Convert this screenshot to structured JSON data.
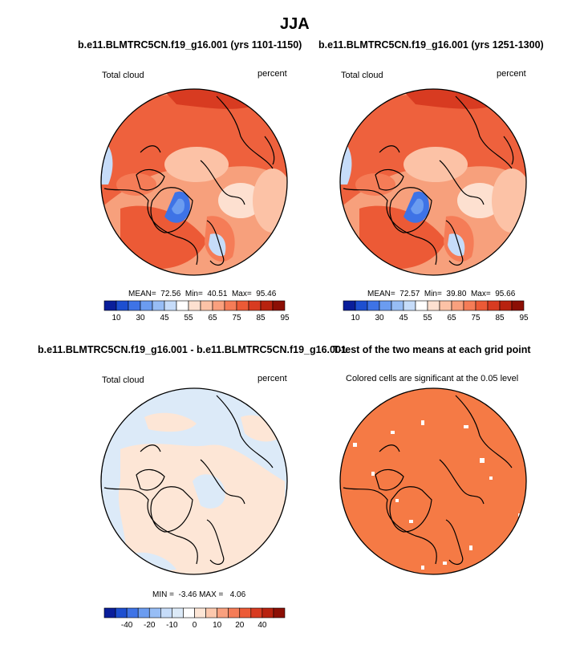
{
  "figure_title": "JJA",
  "panels": [
    {
      "title": "b.e11.BLMTRC5CN.f19_g16.001 (yrs 1101-1150)",
      "left_label": "Total cloud",
      "right_label": "percent",
      "stats": "MEAN=  72.56  Min=  40.51  Max=  95.46"
    },
    {
      "title": "b.e11.BLMTRC5CN.f19_g16.001 (yrs 1251-1300)",
      "left_label": "Total cloud",
      "right_label": "percent",
      "stats": "MEAN=  72.57  Min=  39.80  Max=  95.66"
    },
    {
      "title": "b.e11.BLMTRC5CN.f19_g16.001 - b.e11.BLMTRC5CN.f19_g16.001",
      "left_label": "Total cloud",
      "right_label": "percent",
      "stats": "MIN =  -3.46 MAX =   4.06"
    },
    {
      "title": "T-test of the two means at each grid point",
      "left_label": "Colored cells are significant at the 0.05 level",
      "right_label": "",
      "stats": ""
    }
  ],
  "colorbars": {
    "top": {
      "colors": [
        "#0a1e9a",
        "#1d4fd0",
        "#3e73e6",
        "#6b9cf0",
        "#97bdf5",
        "#c6dcf9",
        "#ffffff",
        "#fde0d0",
        "#fcc2a6",
        "#f9a07e",
        "#f57c57",
        "#ec5a36",
        "#d83b21",
        "#b8220f",
        "#8c0f05"
      ],
      "labels": [
        "10",
        "30",
        "45",
        "55",
        "65",
        "75",
        "85",
        "95"
      ],
      "label_after_box": [
        1,
        3,
        5,
        7,
        9,
        11,
        13,
        15
      ]
    },
    "bottom": {
      "colors": [
        "#0a1e9a",
        "#1d4fd0",
        "#3e73e6",
        "#6b9cf0",
        "#97bdf5",
        "#c6dcf9",
        "#dceaf8",
        "#ffffff",
        "#fde6d6",
        "#fcc8ad",
        "#f9a07e",
        "#f57c57",
        "#ec5a36",
        "#d83b21",
        "#b8220f",
        "#8c0f05"
      ],
      "labels": [
        "-40",
        "-20",
        "-10",
        "0",
        "10",
        "20",
        "40"
      ],
      "label_after_box": [
        2,
        4,
        6,
        8,
        10,
        12,
        14
      ]
    }
  },
  "chart_data": [
    {
      "type": "heatmap",
      "title": "b.e11.BLMTRC5CN.f19_g16.001 (yrs 1101-1150)",
      "variable": "Total cloud",
      "units": "percent",
      "season": "JJA",
      "mean": 72.56,
      "min": 40.51,
      "max": 95.46,
      "contour_levels": [
        10,
        20,
        30,
        40,
        45,
        50,
        55,
        60,
        65,
        70,
        75,
        80,
        85,
        90,
        95
      ]
    },
    {
      "type": "heatmap",
      "title": "b.e11.BLMTRC5CN.f19_g16.001 (yrs 1251-1300)",
      "variable": "Total cloud",
      "units": "percent",
      "season": "JJA",
      "mean": 72.57,
      "min": 39.8,
      "max": 95.66,
      "contour_levels": [
        10,
        20,
        30,
        40,
        45,
        50,
        55,
        60,
        65,
        70,
        75,
        80,
        85,
        90,
        95
      ]
    },
    {
      "type": "heatmap",
      "title": "b.e11.BLMTRC5CN.f19_g16.001 - b.e11.BLMTRC5CN.f19_g16.001",
      "variable": "Total cloud",
      "units": "percent",
      "season": "JJA",
      "min": -3.46,
      "max": 4.06,
      "contour_levels": [
        -40,
        -30,
        -20,
        -15,
        -10,
        -5,
        0,
        5,
        10,
        15,
        20,
        30,
        40
      ]
    },
    {
      "type": "heatmap",
      "title": "T-test of the two means at each grid point",
      "significance_level": 0.05
    }
  ]
}
